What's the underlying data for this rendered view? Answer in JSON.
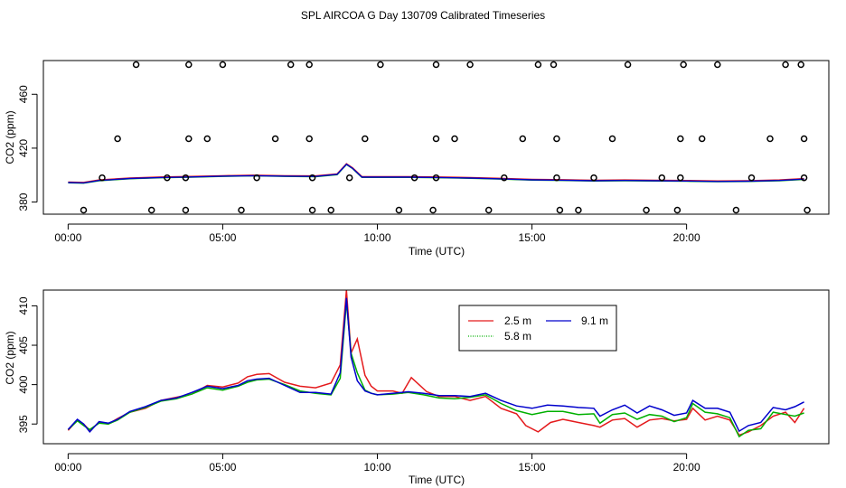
{
  "figure_title": "SPL AIRCOA G  Day 130709  Calibrated Timeseries",
  "chart_data": [
    {
      "type": "line",
      "title": "SPL AIRCOA G  Day 130709  Calibrated Timeseries",
      "xlabel": "Time (UTC)",
      "ylabel": "CO2 (ppm)",
      "xlim": [
        -0.8,
        24.6
      ],
      "ylim": [
        371,
        485
      ],
      "x_ticks": [
        0,
        5,
        10,
        15,
        20
      ],
      "x_tick_labels": [
        "00:00",
        "05:00",
        "10:00",
        "15:00",
        "20:00"
      ],
      "y_ticks": [
        380,
        420,
        460
      ],
      "y_tick_labels": [
        "380",
        "420",
        "460"
      ],
      "line_points": [
        [
          0,
          394.5
        ],
        [
          0.5,
          394.2
        ],
        [
          1,
          396
        ],
        [
          2,
          397.5
        ],
        [
          3,
          398.2
        ],
        [
          4,
          398.6
        ],
        [
          5,
          399.2
        ],
        [
          6,
          399.6
        ],
        [
          7,
          399.2
        ],
        [
          8,
          399
        ],
        [
          8.7,
          400.5
        ],
        [
          9.0,
          408
        ],
        [
          9.2,
          405
        ],
        [
          9.5,
          398.5
        ],
        [
          10,
          398.5
        ],
        [
          11,
          398.5
        ],
        [
          12,
          398.2
        ],
        [
          13,
          397.8
        ],
        [
          14,
          397.2
        ],
        [
          15,
          396.5
        ],
        [
          16,
          396.2
        ],
        [
          17,
          395.8
        ],
        [
          18,
          396
        ],
        [
          19,
          395.8
        ],
        [
          20,
          395.6
        ],
        [
          21,
          395.3
        ],
        [
          22,
          395.5
        ],
        [
          23,
          396
        ],
        [
          23.8,
          397
        ]
      ],
      "series": [
        {
          "name": "2.5 m",
          "color": "#e41a1c"
        },
        {
          "name": "5.8 m",
          "color": "#00b000"
        },
        {
          "name": "9.1 m",
          "color": "#0000cc"
        }
      ],
      "markers": {
        "symbol": "open-circle",
        "points": [
          [
            0.5,
            374
          ],
          [
            1.1,
            398
          ],
          [
            1.6,
            427
          ],
          [
            2.2,
            482
          ],
          [
            2.7,
            374
          ],
          [
            3.2,
            398
          ],
          [
            3.8,
            374
          ],
          [
            3.8,
            398
          ],
          [
            3.9,
            427
          ],
          [
            3.9,
            482
          ],
          [
            4.5,
            427
          ],
          [
            5.0,
            482
          ],
          [
            5.6,
            374
          ],
          [
            6.1,
            398
          ],
          [
            6.7,
            427
          ],
          [
            7.2,
            482
          ],
          [
            7.8,
            482
          ],
          [
            7.8,
            427
          ],
          [
            7.9,
            398
          ],
          [
            7.9,
            374
          ],
          [
            8.5,
            374
          ],
          [
            9.1,
            398
          ],
          [
            9.6,
            427
          ],
          [
            10.1,
            482
          ],
          [
            10.7,
            374
          ],
          [
            11.2,
            398
          ],
          [
            11.8,
            374
          ],
          [
            11.9,
            398
          ],
          [
            11.9,
            427
          ],
          [
            11.9,
            482
          ],
          [
            12.5,
            427
          ],
          [
            13.0,
            482
          ],
          [
            13.6,
            374
          ],
          [
            14.1,
            398
          ],
          [
            14.7,
            427
          ],
          [
            15.2,
            482
          ],
          [
            15.7,
            482
          ],
          [
            15.8,
            427
          ],
          [
            15.8,
            398
          ],
          [
            15.9,
            374
          ],
          [
            16.5,
            374
          ],
          [
            17.0,
            398
          ],
          [
            17.6,
            427
          ],
          [
            18.1,
            482
          ],
          [
            18.7,
            374
          ],
          [
            19.2,
            398
          ],
          [
            19.7,
            374
          ],
          [
            19.8,
            398
          ],
          [
            19.8,
            427
          ],
          [
            19.9,
            482
          ],
          [
            20.5,
            427
          ],
          [
            21.0,
            482
          ],
          [
            21.6,
            374
          ],
          [
            22.1,
            398
          ],
          [
            22.7,
            427
          ],
          [
            23.2,
            482
          ],
          [
            23.7,
            482
          ],
          [
            23.8,
            427
          ],
          [
            23.8,
            398
          ],
          [
            23.9,
            374
          ]
        ]
      },
      "grid": false
    },
    {
      "type": "line",
      "title": "",
      "xlabel": "Time (UTC)",
      "ylabel": "CO2 (ppm)",
      "xlim": [
        -0.8,
        24.6
      ],
      "ylim": [
        392.5,
        412
      ],
      "x_ticks": [
        0,
        5,
        10,
        15,
        20
      ],
      "x_tick_labels": [
        "00:00",
        "05:00",
        "10:00",
        "15:00",
        "20:00"
      ],
      "y_ticks": [
        395,
        400,
        405,
        410
      ],
      "y_tick_labels": [
        "395",
        "400",
        "405",
        "410"
      ],
      "legend_position": "top-center",
      "grid": false,
      "series": [
        {
          "name": "2.5 m",
          "color": "#e41a1c",
          "points": [
            [
              0,
              394.2
            ],
            [
              0.3,
              395.5
            ],
            [
              0.5,
              395.0
            ],
            [
              0.7,
              394.2
            ],
            [
              1,
              395.2
            ],
            [
              1.3,
              395.0
            ],
            [
              1.6,
              395.7
            ],
            [
              2,
              396.5
            ],
            [
              2.5,
              397.0
            ],
            [
              3,
              398.0
            ],
            [
              3.5,
              398.4
            ],
            [
              4,
              398.8
            ],
            [
              4.5,
              399.9
            ],
            [
              5,
              399.7
            ],
            [
              5.5,
              400.2
            ],
            [
              5.8,
              401.0
            ],
            [
              6.1,
              401.3
            ],
            [
              6.5,
              401.4
            ],
            [
              7,
              400.3
            ],
            [
              7.5,
              399.8
            ],
            [
              8,
              399.6
            ],
            [
              8.5,
              400.2
            ],
            [
              8.8,
              402.5
            ],
            [
              9.0,
              412.0
            ],
            [
              9.15,
              404
            ],
            [
              9.35,
              405.8
            ],
            [
              9.6,
              401.2
            ],
            [
              9.8,
              399.8
            ],
            [
              10.0,
              399.2
            ],
            [
              10.5,
              399.2
            ],
            [
              10.8,
              398.9
            ],
            [
              11.1,
              400.9
            ],
            [
              11.6,
              399.1
            ],
            [
              12,
              398.5
            ],
            [
              12.5,
              398.5
            ],
            [
              13,
              398.0
            ],
            [
              13.5,
              398.5
            ],
            [
              14,
              397.0
            ],
            [
              14.5,
              396.3
            ],
            [
              14.8,
              394.8
            ],
            [
              15.2,
              394.0
            ],
            [
              15.6,
              395.2
            ],
            [
              16,
              395.6
            ],
            [
              16.5,
              395.2
            ],
            [
              17,
              394.8
            ],
            [
              17.2,
              394.6
            ],
            [
              17.6,
              395.5
            ],
            [
              18,
              395.7
            ],
            [
              18.4,
              394.6
            ],
            [
              18.8,
              395.5
            ],
            [
              19.2,
              395.7
            ],
            [
              19.6,
              395.4
            ],
            [
              20,
              395.6
            ],
            [
              20.2,
              397.0
            ],
            [
              20.6,
              395.5
            ],
            [
              21,
              396.0
            ],
            [
              21.4,
              395.5
            ],
            [
              21.7,
              393.6
            ],
            [
              22,
              394.0
            ],
            [
              22.4,
              394.8
            ],
            [
              22.8,
              396.0
            ],
            [
              23.2,
              396.5
            ],
            [
              23.5,
              395.2
            ],
            [
              23.8,
              397.0
            ]
          ]
        },
        {
          "name": "5.8 m",
          "color": "#00b000",
          "points": [
            [
              0,
              394.3
            ],
            [
              0.3,
              395.4
            ],
            [
              0.5,
              394.8
            ],
            [
              0.7,
              394.3
            ],
            [
              1,
              395.1
            ],
            [
              1.3,
              395.0
            ],
            [
              1.6,
              395.5
            ],
            [
              2,
              396.5
            ],
            [
              2.5,
              397.1
            ],
            [
              3,
              397.9
            ],
            [
              3.5,
              398.2
            ],
            [
              4,
              398.8
            ],
            [
              4.5,
              399.6
            ],
            [
              5,
              399.3
            ],
            [
              5.5,
              399.8
            ],
            [
              5.8,
              400.3
            ],
            [
              6.1,
              400.6
            ],
            [
              6.5,
              400.7
            ],
            [
              7,
              400.0
            ],
            [
              7.5,
              399.2
            ],
            [
              8,
              398.9
            ],
            [
              8.5,
              398.7
            ],
            [
              8.8,
              400.8
            ],
            [
              9.0,
              410.5
            ],
            [
              9.15,
              404
            ],
            [
              9.35,
              401.5
            ],
            [
              9.6,
              399.3
            ],
            [
              9.8,
              398.9
            ],
            [
              10.0,
              398.7
            ],
            [
              10.5,
              398.8
            ],
            [
              11,
              399.0
            ],
            [
              11.5,
              398.7
            ],
            [
              12,
              398.3
            ],
            [
              12.5,
              398.2
            ],
            [
              13,
              398.4
            ],
            [
              13.5,
              398.7
            ],
            [
              14,
              397.6
            ],
            [
              14.5,
              396.7
            ],
            [
              15,
              396.2
            ],
            [
              15.5,
              396.6
            ],
            [
              16,
              396.6
            ],
            [
              16.5,
              396.2
            ],
            [
              17,
              396.3
            ],
            [
              17.2,
              395.1
            ],
            [
              17.6,
              396.2
            ],
            [
              18,
              396.4
            ],
            [
              18.4,
              395.6
            ],
            [
              18.8,
              396.2
            ],
            [
              19.2,
              396.0
            ],
            [
              19.6,
              395.3
            ],
            [
              20,
              395.8
            ],
            [
              20.2,
              397.6
            ],
            [
              20.6,
              396.5
            ],
            [
              21,
              396.3
            ],
            [
              21.4,
              395.8
            ],
            [
              21.7,
              393.4
            ],
            [
              22,
              394.2
            ],
            [
              22.4,
              394.4
            ],
            [
              22.8,
              396.5
            ],
            [
              23.2,
              396.2
            ],
            [
              23.5,
              396.0
            ],
            [
              23.8,
              396.4
            ]
          ]
        },
        {
          "name": "9.1 m",
          "color": "#0000cc",
          "points": [
            [
              0,
              394.3
            ],
            [
              0.3,
              395.6
            ],
            [
              0.5,
              395.0
            ],
            [
              0.7,
              394.0
            ],
            [
              1,
              395.3
            ],
            [
              1.3,
              395.1
            ],
            [
              1.6,
              395.6
            ],
            [
              2,
              396.6
            ],
            [
              2.5,
              397.2
            ],
            [
              3,
              398.0
            ],
            [
              3.5,
              398.3
            ],
            [
              4,
              399.0
            ],
            [
              4.5,
              399.8
            ],
            [
              5,
              399.5
            ],
            [
              5.5,
              399.9
            ],
            [
              5.8,
              400.5
            ],
            [
              6.1,
              400.7
            ],
            [
              6.5,
              400.8
            ],
            [
              7,
              399.9
            ],
            [
              7.5,
              399.0
            ],
            [
              8,
              399.0
            ],
            [
              8.5,
              398.8
            ],
            [
              8.8,
              401.5
            ],
            [
              9.0,
              411.0
            ],
            [
              9.15,
              403.5
            ],
            [
              9.35,
              400.5
            ],
            [
              9.6,
              399.2
            ],
            [
              9.8,
              398.9
            ],
            [
              10.0,
              398.7
            ],
            [
              10.5,
              398.9
            ],
            [
              11,
              399.1
            ],
            [
              11.5,
              398.9
            ],
            [
              12,
              398.6
            ],
            [
              12.5,
              398.6
            ],
            [
              13,
              398.5
            ],
            [
              13.5,
              398.9
            ],
            [
              14,
              398.0
            ],
            [
              14.5,
              397.3
            ],
            [
              15,
              397.0
            ],
            [
              15.5,
              397.4
            ],
            [
              16,
              397.3
            ],
            [
              16.5,
              397.1
            ],
            [
              17,
              397.0
            ],
            [
              17.2,
              396.0
            ],
            [
              17.6,
              396.8
            ],
            [
              18,
              397.4
            ],
            [
              18.4,
              396.4
            ],
            [
              18.8,
              397.3
            ],
            [
              19.2,
              396.8
            ],
            [
              19.6,
              396.1
            ],
            [
              20,
              396.4
            ],
            [
              20.2,
              398.0
            ],
            [
              20.6,
              397.0
            ],
            [
              21,
              397.0
            ],
            [
              21.4,
              396.5
            ],
            [
              21.7,
              394.1
            ],
            [
              22,
              394.8
            ],
            [
              22.4,
              395.2
            ],
            [
              22.8,
              397.1
            ],
            [
              23.2,
              396.8
            ],
            [
              23.5,
              397.2
            ],
            [
              23.8,
              397.8
            ]
          ]
        }
      ]
    }
  ]
}
